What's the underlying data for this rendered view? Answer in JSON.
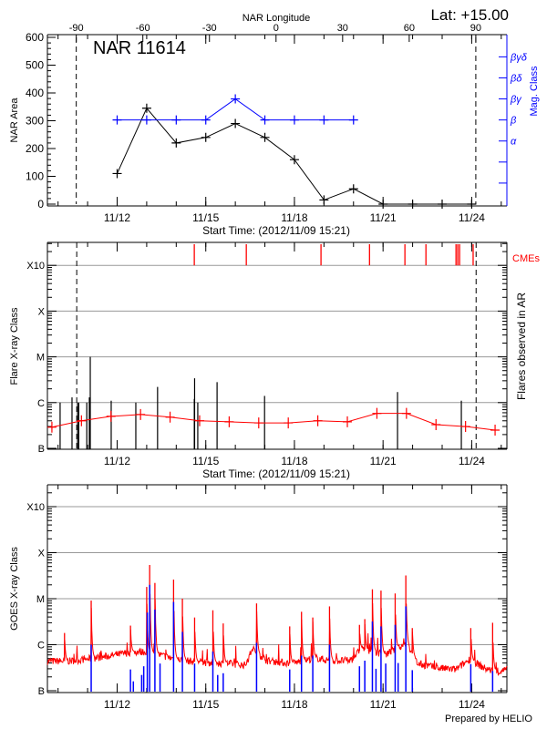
{
  "header": {
    "lat_label": "Lat: +15.00",
    "footer": "Prepared by HELIO"
  },
  "chart_data": [
    {
      "type": "line",
      "title": "NAR 11614",
      "start_time": "2012-11-09 15:21",
      "end_time": "2012-11-25 04:35",
      "xlabel": "Start Time: (2012/11/09 15:21)",
      "xticks": [
        "11/12",
        "11/15",
        "11/18",
        "11/21",
        "11/24"
      ],
      "top_axis": {
        "label": "NAR Longitude",
        "ticks": [
          -90,
          -60,
          -30,
          0,
          30,
          60,
          90
        ],
        "range": [
          -103,
          104
        ],
        "limb_lines": [
          -90,
          90
        ]
      },
      "ylabel": "NAR Area",
      "ylim": [
        0,
        600
      ],
      "yticks": [
        0,
        100,
        200,
        300,
        400,
        500,
        600
      ],
      "right_axis": {
        "label": "Mag. Class",
        "color": "#0000ff",
        "levels": [
          "",
          "",
          "α",
          "β",
          "βγ",
          "βδ",
          "βγδ"
        ]
      },
      "series": [
        {
          "kind": "area",
          "color": "#000000",
          "times": [
            "2012-11-12 00:00",
            "2012-11-13 00:00",
            "2012-11-14 00:00",
            "2012-11-15 00:00",
            "2012-11-16 00:00",
            "2012-11-17 00:00",
            "2012-11-18 00:00",
            "2012-11-19 00:00",
            "2012-11-20 00:00",
            "2012-11-21 00:00",
            "2012-11-22 00:00",
            "2012-11-23 00:00",
            "2012-11-24 00:00"
          ],
          "values": [
            110,
            345,
            220,
            240,
            290,
            240,
            160,
            15,
            55,
            0,
            0,
            0,
            0
          ]
        },
        {
          "kind": "mag_class",
          "color": "#0000ff",
          "times": [
            "2012-11-12 00:00",
            "2012-11-13 00:00",
            "2012-11-14 00:00",
            "2012-11-15 00:00",
            "2012-11-16 00:00",
            "2012-11-17 00:00",
            "2012-11-18 00:00",
            "2012-11-19 00:00",
            "2012-11-20 00:00"
          ],
          "values": [
            "β",
            "β",
            "β",
            "β",
            "βγ",
            "β",
            "β",
            "β",
            "β"
          ]
        }
      ]
    },
    {
      "type": "bar",
      "start_time": "2012-11-09 15:21",
      "end_time": "2012-11-25 04:35",
      "xlabel": "Start Time: (2012/11/09 15:21)",
      "xticks": [
        "11/12",
        "11/15",
        "11/18",
        "11/21",
        "11/24"
      ],
      "ylabel": "Flare X-ray Class",
      "right_label": "Flares observed in AR",
      "yticks": [
        "B",
        "C",
        "M",
        "X",
        "X10"
      ],
      "limb_times": [
        "2012-11-10 15:10",
        "2012-11-24 03:35"
      ],
      "cme_label": "CMEs",
      "cme_color": "#ff0000",
      "cmes": [
        "2012-11-14 14:40",
        "2012-11-16 08:55",
        "2012-11-18 21:35",
        "2012-11-20 13:00",
        "2012-11-21 17:45",
        "2012-11-22 10:50",
        "2012-11-23 11:15",
        "2012-11-23 12:40",
        "2012-11-23 14:10",
        "2012-11-24 01:10"
      ],
      "flares": [
        {
          "time": "2012-11-10 01:40",
          "class": "C1.0"
        },
        {
          "time": "2012-11-10 11:20",
          "class": "C1.3"
        },
        {
          "time": "2012-11-10 15:50",
          "class": "C1.0"
        },
        {
          "time": "2012-11-10 16:50",
          "class": "C1.0"
        },
        {
          "time": "2012-11-10 23:20",
          "class": "C1.0"
        },
        {
          "time": "2012-11-11 01:25",
          "class": "C1.3"
        },
        {
          "time": "2012-11-11 02:10",
          "class": "M1.0"
        },
        {
          "time": "2012-11-11 19:10",
          "class": "C1.1"
        },
        {
          "time": "2012-11-12 15:10",
          "class": "C1.0"
        },
        {
          "time": "2012-11-13 08:50",
          "class": "C2.2"
        },
        {
          "time": "2012-11-14 14:40",
          "class": "C1.2"
        },
        {
          "time": "2012-11-14 14:55",
          "class": "C3.4"
        },
        {
          "time": "2012-11-14 17:30",
          "class": "C1.0"
        },
        {
          "time": "2012-11-15 09:10",
          "class": "C2.8"
        },
        {
          "time": "2012-11-16 23:45",
          "class": "C1.4"
        },
        {
          "time": "2012-11-21 11:45",
          "class": "C1.7"
        },
        {
          "time": "2012-11-23 15:35",
          "class": "C1.1"
        }
      ],
      "background": {
        "color": "#ff0000",
        "times": [
          "2012-11-09 19:00",
          "2012-11-10 19:00",
          "2012-11-11 19:00",
          "2012-11-12 19:00",
          "2012-11-13 19:00",
          "2012-11-14 19:00",
          "2012-11-15 19:00",
          "2012-11-16 19:00",
          "2012-11-17 19:00",
          "2012-11-18 19:00",
          "2012-11-19 19:00",
          "2012-11-20 19:00",
          "2012-11-21 19:00",
          "2012-11-22 19:00",
          "2012-11-23 19:00",
          "2012-11-24 19:00"
        ],
        "values": [
          "B2.9",
          "B4.0",
          "B5.0",
          "B5.5",
          "B4.8",
          "B4.0",
          "B3.8",
          "B3.6",
          "B3.6",
          "B4.0",
          "B3.8",
          "B5.8",
          "B5.8",
          "B3.3",
          "B3.0",
          "B2.5"
        ]
      }
    },
    {
      "type": "line",
      "start_time": "2012-11-09 15:21",
      "end_time": "2012-11-25 04:35",
      "xticks": [
        "11/12",
        "11/15",
        "11/18",
        "11/21",
        "11/24"
      ],
      "ylabel": "GOES X-ray Class",
      "yticks": [
        "B",
        "C",
        "M",
        "X",
        "X10"
      ],
      "long_channel": {
        "color": "#ff0000",
        "baseline_times": [
          "2012-11-09 15:21",
          "2012-11-10 09:50",
          "2012-11-11 14:25",
          "2012-11-12 13:00",
          "2012-11-13 00:30",
          "2012-11-13 23:15",
          "2012-11-14 16:20",
          "2012-11-15 18:00",
          "2012-11-16 08:10",
          "2012-11-16 14:00",
          "2012-11-17 01:30",
          "2012-11-17 21:20",
          "2012-11-18 17:15",
          "2012-11-19 04:30",
          "2012-11-19 21:50",
          "2012-11-20 06:15",
          "2012-11-21 02:10",
          "2012-11-21 19:25",
          "2012-11-22 03:50",
          "2012-11-22 20:55",
          "2012-11-23 11:15",
          "2012-11-23 22:35",
          "2012-11-24 10:05",
          "2012-11-24 21:20",
          "2012-11-25 04:35"
        ],
        "baseline_flux": [
          4.4e-07,
          4.4e-07,
          5.5e-07,
          7e-07,
          7e-07,
          4.9e-07,
          4.2e-07,
          3.9e-07,
          3.6e-07,
          8.2e-07,
          4.5e-07,
          3.9e-07,
          5.2e-07,
          4.5e-07,
          4.5e-07,
          8.2e-07,
          6.1e-07,
          1.1e-06,
          3.9e-07,
          3.1e-07,
          2.9e-07,
          4.9e-07,
          3.1e-07,
          2.5e-07,
          2.9e-07
        ],
        "peaks": [
          {
            "time": "2012-11-10 05:15",
            "flux": 1.8e-06
          },
          {
            "time": "2012-11-11 02:55",
            "flux": 9.1e-06
          },
          {
            "time": "2012-11-12 10:50",
            "flux": 2.6e-06
          },
          {
            "time": "2012-11-13 00:00",
            "flux": 1.8e-05
          },
          {
            "time": "2012-11-13 02:25",
            "flux": 5.4e-05
          },
          {
            "time": "2012-11-13 06:40",
            "flux": 2.2e-05
          },
          {
            "time": "2012-11-13 21:50",
            "flux": 2.6e-05
          },
          {
            "time": "2012-11-14 05:00",
            "flux": 1e-05
          },
          {
            "time": "2012-11-14 14:55",
            "flux": 3.9e-06
          },
          {
            "time": "2012-11-15 05:45",
            "flux": 5.6e-06
          },
          {
            "time": "2012-11-15 14:10",
            "flux": 2.9e-06
          },
          {
            "time": "2012-11-16 17:15",
            "flux": 7.9e-06
          },
          {
            "time": "2012-11-17 20:10",
            "flux": 2.5e-06
          },
          {
            "time": "2012-11-18 05:45",
            "flux": 5.2e-06
          },
          {
            "time": "2012-11-18 14:55",
            "flux": 3.9e-06
          },
          {
            "time": "2012-11-19 04:30",
            "flux": 6.8e-06
          },
          {
            "time": "2012-11-20 04:50",
            "flux": 2.7e-06
          },
          {
            "time": "2012-11-20 09:10",
            "flux": 3.6e-06
          },
          {
            "time": "2012-11-20 15:20",
            "flux": 1.6e-05
          },
          {
            "time": "2012-11-20 22:20",
            "flux": 1.5e-05
          },
          {
            "time": "2012-11-21 09:50",
            "flux": 1.3e-05
          },
          {
            "time": "2012-11-21 18:30",
            "flux": 3.2e-05
          },
          {
            "time": "2012-11-21 23:45",
            "flux": 2.3e-06
          },
          {
            "time": "2012-11-23 23:15",
            "flux": 2.3e-06
          },
          {
            "time": "2012-11-24 17:00",
            "flux": 3e-06
          }
        ]
      },
      "short_channel": {
        "color": "#0000ff",
        "spikes": [
          {
            "time": "2012-11-11 02:55",
            "flux": 1e-06
          },
          {
            "time": "2012-11-12 10:50",
            "flux": 2.9e-07
          },
          {
            "time": "2012-11-12 13:10",
            "flux": 1.6e-07
          },
          {
            "time": "2012-11-12 19:55",
            "flux": 2.2e-07
          },
          {
            "time": "2012-11-12 21:35",
            "flux": 3.4e-07
          },
          {
            "time": "2012-11-13 00:30",
            "flux": 5e-06
          },
          {
            "time": "2012-11-13 02:25",
            "flux": 2e-05
          },
          {
            "time": "2012-11-13 06:40",
            "flux": 5.8e-06
          },
          {
            "time": "2012-11-13 10:50",
            "flux": 3.9e-07
          },
          {
            "time": "2012-11-13 21:50",
            "flux": 8.5e-06
          },
          {
            "time": "2012-11-14 05:00",
            "flux": 1.9e-06
          },
          {
            "time": "2012-11-14 14:55",
            "flux": 3.9e-07
          },
          {
            "time": "2012-11-15 05:45",
            "flux": 7.1e-07
          },
          {
            "time": "2012-11-15 09:40",
            "flux": 2.2e-07
          },
          {
            "time": "2012-11-15 14:10",
            "flux": 2.4e-07
          },
          {
            "time": "2012-11-16 17:15",
            "flux": 1.1e-06
          },
          {
            "time": "2012-11-17 20:10",
            "flux": 2.9e-07
          },
          {
            "time": "2012-11-18 05:45",
            "flux": 5.8e-07
          },
          {
            "time": "2012-11-18 14:55",
            "flux": 5.8e-07
          },
          {
            "time": "2012-11-19 04:30",
            "flux": 1e-06
          },
          {
            "time": "2012-11-20 04:50",
            "flux": 3.4e-07
          },
          {
            "time": "2012-11-20 09:10",
            "flux": 4.5e-07
          },
          {
            "time": "2012-11-20 15:20",
            "flux": 3.2e-06
          },
          {
            "time": "2012-11-20 18:15",
            "flux": 3e-07
          },
          {
            "time": "2012-11-20 22:20",
            "flux": 2.5e-06
          },
          {
            "time": "2012-11-21 02:10",
            "flux": 3.9e-07
          },
          {
            "time": "2012-11-21 09:50",
            "flux": 2.7e-06
          },
          {
            "time": "2012-11-21 12:15",
            "flux": 4e-07
          },
          {
            "time": "2012-11-21 18:30",
            "flux": 6.8e-06
          },
          {
            "time": "2012-11-21 23:45",
            "flux": 2.8e-07
          },
          {
            "time": "2012-11-23 23:15",
            "flux": 3.8e-07
          },
          {
            "time": "2012-11-24 17:00",
            "flux": 2.7e-07
          }
        ]
      }
    }
  ]
}
